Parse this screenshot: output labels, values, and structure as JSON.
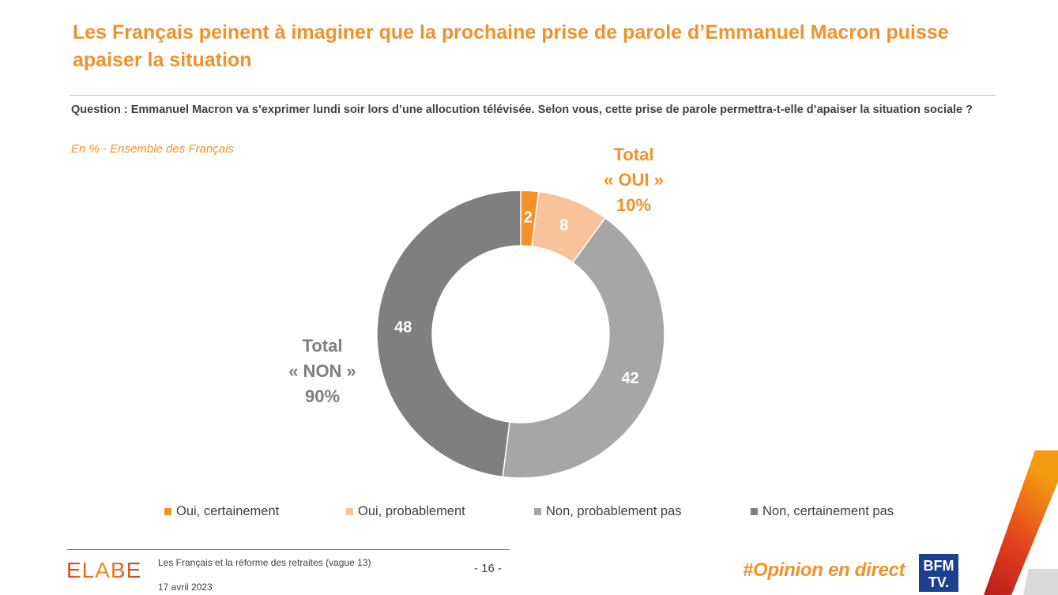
{
  "header": {
    "title": "Les Français peinent à imaginer que la prochaine prise de parole d’Emmanuel Macron puisse apaiser la situation",
    "question_label": "Question :",
    "question_text": "Emmanuel Macron va s’exprimer lundi soir lors d’une allocution télévisée. Selon vous, cette prise de parole permettra-t-elle d’apaiser la situation sociale ?",
    "subtitle": "En % - Ensemble des Français"
  },
  "totals": {
    "oui": {
      "line1": "Total",
      "line2": "« OUI »",
      "line3": "10%",
      "color": "#f0922b"
    },
    "non": {
      "line1": "Total",
      "line2": "« NON »",
      "line3": "90%",
      "color": "#7f7f7f"
    }
  },
  "chart_data": {
    "type": "pie",
    "subtype": "donut",
    "start_angle": "top, clockwise",
    "categories": [
      "Oui, certainement",
      "Oui, probablement",
      "Non, probablement pas",
      "Non, certainement pas"
    ],
    "values": [
      2,
      8,
      42,
      48
    ],
    "labels": [
      "2",
      "8",
      "42",
      "48"
    ],
    "colors": [
      "#f39228",
      "#f8c29b",
      "#a6a6a6",
      "#7f7f7f"
    ],
    "label_colors": [
      "#ffffff",
      "#ffffff",
      "#ffffff",
      "#ffffff"
    ],
    "unit": "%",
    "legend_position": "bottom"
  },
  "footer": {
    "logo_text": "ELABE",
    "study": "Les Français et la réforme des retraites (vague 13)",
    "date": "17 avril 2023",
    "page": "- 16 -",
    "hashtag": "#Opinion en direct",
    "bfm_line1": "BFM",
    "bfm_line2": "TV."
  },
  "colors": {
    "accent": "#f0922b",
    "text": "#404040",
    "bfm_blue": "#1d3f8f"
  }
}
